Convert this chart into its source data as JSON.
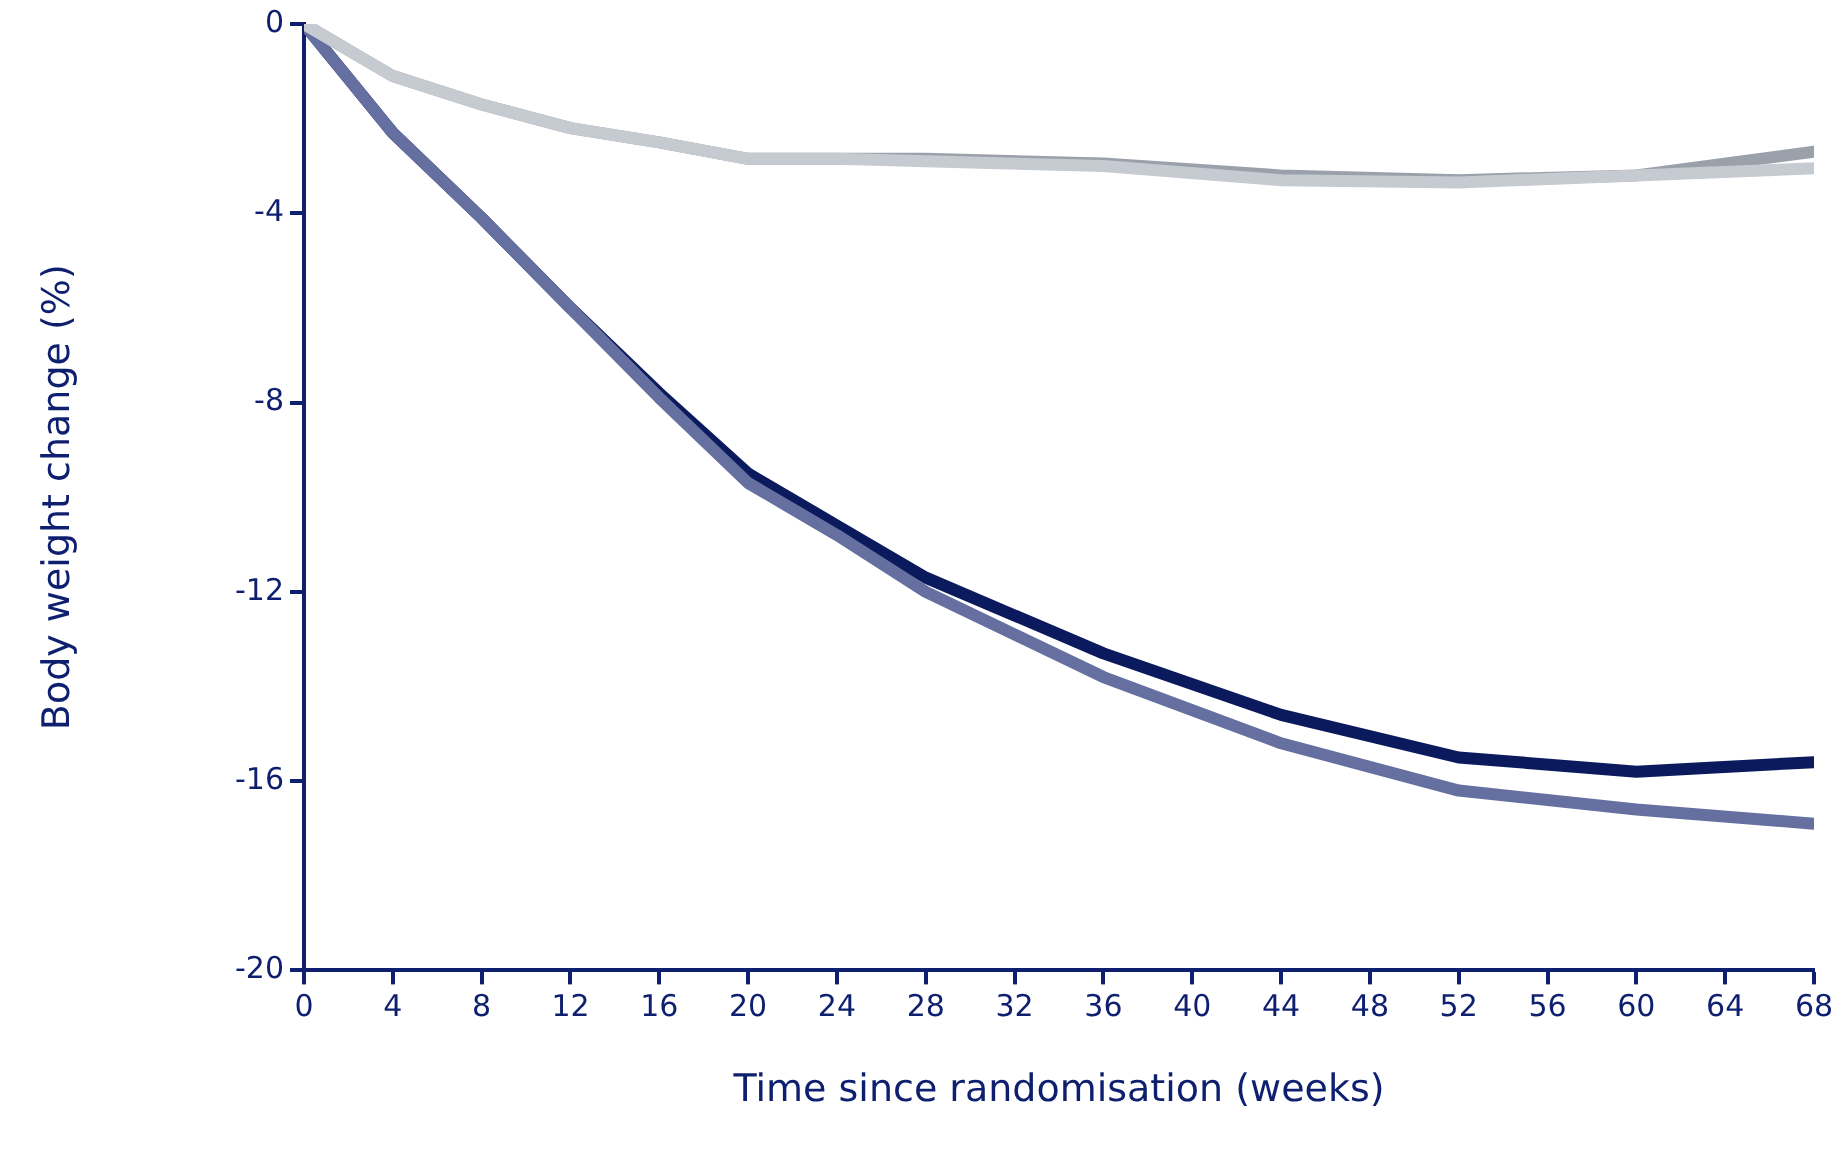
{
  "chart_data": {
    "type": "line",
    "xlabel": "Time since randomisation (weeks)",
    "ylabel": "Body weight change (%)",
    "xlim": [
      0,
      68
    ],
    "xticks": [
      0,
      4,
      8,
      12,
      16,
      20,
      24,
      28,
      32,
      36,
      40,
      44,
      48,
      52,
      56,
      60,
      64,
      68
    ],
    "ylim": [
      -20,
      0
    ],
    "yticks": [
      -20,
      -16,
      -12,
      -8,
      -4,
      0
    ],
    "x": [
      0,
      4,
      8,
      12,
      16,
      20,
      24,
      28,
      36,
      44,
      52,
      60,
      68
    ],
    "series": [
      {
        "color": "#c6cad1",
        "values": [
          0,
          -1.1,
          -1.7,
          -2.2,
          -2.5,
          -2.85,
          -2.85,
          -2.9,
          -3.0,
          -3.3,
          -3.35,
          -3.2,
          -3.05
        ]
      },
      {
        "color": "#9ba1ab",
        "values": [
          0,
          -1.1,
          -1.7,
          -2.2,
          -2.5,
          -2.85,
          -2.85,
          -2.85,
          -2.95,
          -3.2,
          -3.3,
          -3.2,
          -2.7
        ]
      },
      {
        "color": "#6670a0",
        "values": [
          0,
          -2.3,
          -4.1,
          -6.0,
          -7.9,
          -9.7,
          -10.8,
          -12.0,
          -13.8,
          -15.2,
          -16.2,
          -16.6,
          -16.9
        ]
      },
      {
        "color": "#0a1a5c",
        "values": [
          0,
          -2.3,
          -4.1,
          -6.0,
          -7.8,
          -9.5,
          -10.6,
          -11.7,
          -13.3,
          -14.6,
          -15.5,
          -15.8,
          -15.6
        ]
      }
    ],
    "grid": false,
    "legend": false,
    "marker": "none",
    "line_style": "solid"
  }
}
